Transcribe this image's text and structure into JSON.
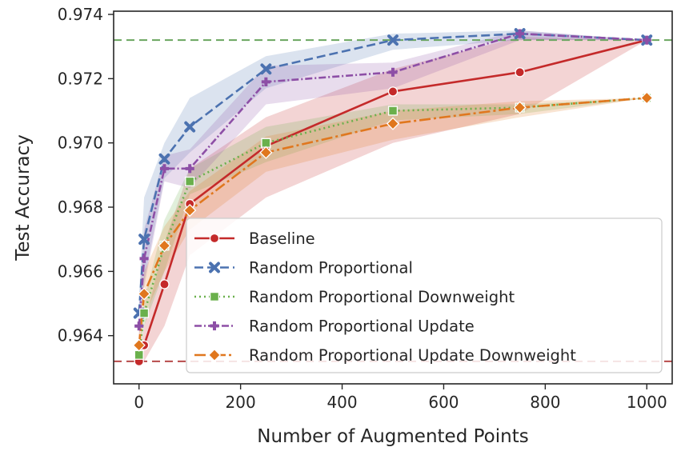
{
  "chart_data": {
    "type": "line",
    "xlabel": "Number of Augmented Points",
    "ylabel": "Test Accuracy",
    "xlim": [
      -50,
      1050
    ],
    "ylim": [
      0.9625,
      0.9741
    ],
    "xticks": [
      0,
      200,
      400,
      600,
      800,
      1000
    ],
    "yticks": [
      0.964,
      0.966,
      0.968,
      0.97,
      0.972,
      0.974
    ],
    "xtick_labels": [
      "0",
      "200",
      "400",
      "600",
      "800",
      "1000"
    ],
    "ytick_labels": [
      "0.964",
      "0.966",
      "0.968",
      "0.970",
      "0.972",
      "0.974"
    ],
    "grid": false,
    "legend_position": "lower-right",
    "reference_lines": [
      {
        "y": 0.9732,
        "color": "#6aa55f",
        "style": "dashed"
      },
      {
        "y": 0.9632,
        "color": "#b84a4a",
        "style": "dashed"
      }
    ],
    "series": [
      {
        "name": "Baseline",
        "color": "#c42a2a",
        "marker": "circle",
        "dash": "",
        "x": [
          0,
          10,
          50,
          100,
          250,
          500,
          750,
          1000
        ],
        "y": [
          0.9632,
          0.9637,
          0.9656,
          0.9681,
          0.9699,
          0.9716,
          0.9722,
          0.9732
        ],
        "lower": [
          0.9632,
          0.9632,
          0.9643,
          0.9665,
          0.9683,
          0.97,
          0.9709,
          0.9732
        ],
        "upper": [
          0.9632,
          0.9643,
          0.9669,
          0.9692,
          0.9708,
          0.9723,
          0.9733,
          0.9732
        ]
      },
      {
        "name": "Random Proportional",
        "color": "#4c72b0",
        "marker": "x",
        "dash": "11,5",
        "x": [
          0,
          10,
          50,
          100,
          250,
          500,
          750,
          1000
        ],
        "y": [
          0.9647,
          0.967,
          0.9695,
          0.9705,
          0.9723,
          0.9732,
          0.9734,
          0.9732
        ],
        "lower": [
          0.9642,
          0.9657,
          0.9689,
          0.9697,
          0.9717,
          0.9729,
          0.9732,
          0.9732
        ],
        "upper": [
          0.9652,
          0.9683,
          0.97,
          0.9714,
          0.9727,
          0.9734,
          0.9735,
          0.9732
        ]
      },
      {
        "name": "Random Proportional Downweight",
        "color": "#6ab04c",
        "marker": "square",
        "dash": "2,4",
        "x": [
          0,
          10,
          50,
          100,
          250,
          500,
          750,
          1000
        ],
        "y": [
          0.9634,
          0.9647,
          0.9668,
          0.9688,
          0.97,
          0.971,
          0.9711,
          0.9714
        ],
        "lower": [
          0.9632,
          0.9643,
          0.966,
          0.9684,
          0.9694,
          0.9707,
          0.9709,
          0.9714
        ],
        "upper": [
          0.9636,
          0.9651,
          0.9676,
          0.9692,
          0.9705,
          0.9712,
          0.9712,
          0.9714
        ]
      },
      {
        "name": "Random Proportional Update",
        "color": "#8d4fa6",
        "marker": "plus",
        "dash": "9,3,2,3",
        "x": [
          0,
          10,
          50,
          100,
          250,
          500,
          750,
          1000
        ],
        "y": [
          0.9643,
          0.9664,
          0.9692,
          0.9692,
          0.9719,
          0.9722,
          0.9734,
          0.9732
        ],
        "lower": [
          0.9638,
          0.9655,
          0.9688,
          0.9686,
          0.9712,
          0.9717,
          0.9732,
          0.9732
        ],
        "upper": [
          0.9648,
          0.9673,
          0.9696,
          0.9698,
          0.9724,
          0.9725,
          0.9735,
          0.9732
        ]
      },
      {
        "name": "Random Proportional Update Downweight",
        "color": "#e0771e",
        "marker": "diamond",
        "dash": "14,4,3,4",
        "x": [
          0,
          10,
          50,
          100,
          250,
          500,
          750,
          1000
        ],
        "y": [
          0.9637,
          0.9653,
          0.9668,
          0.9679,
          0.9697,
          0.9706,
          0.9711,
          0.9714
        ],
        "lower": [
          0.9632,
          0.9646,
          0.966,
          0.9673,
          0.9691,
          0.9701,
          0.9708,
          0.9714
        ],
        "upper": [
          0.9641,
          0.966,
          0.9674,
          0.9685,
          0.9702,
          0.971,
          0.9713,
          0.9714
        ]
      }
    ]
  }
}
